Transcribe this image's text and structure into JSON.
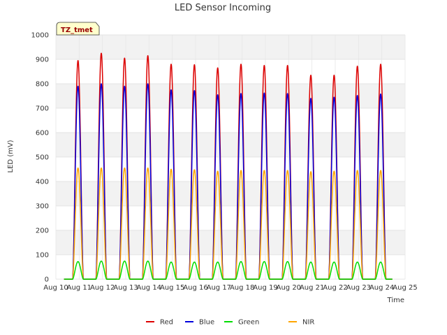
{
  "chart_data": {
    "type": "line",
    "title": "LED Sensor Incoming",
    "xlabel": "Time",
    "ylabel": "LED (mV)",
    "ylim": [
      0,
      1000
    ],
    "yticks": [
      0,
      100,
      200,
      300,
      400,
      500,
      600,
      700,
      800,
      900,
      1000
    ],
    "xlim_days": [
      10,
      25
    ],
    "xtick_labels": [
      "Aug 10",
      "Aug 11",
      "Aug 12",
      "Aug 13",
      "Aug 14",
      "Aug 15",
      "Aug 16",
      "Aug 17",
      "Aug 18",
      "Aug 19",
      "Aug 20",
      "Aug 21",
      "Aug 22",
      "Aug 23",
      "Aug 24",
      "Aug 25"
    ],
    "grid": true,
    "legend_position": "bottom-center",
    "badge": "TZ_tmet",
    "series": [
      {
        "name": "Red",
        "color": "#dd0000",
        "daily_peaks": [
          895,
          925,
          905,
          915,
          880,
          878,
          865,
          880,
          875,
          875,
          835,
          835,
          872,
          880
        ]
      },
      {
        "name": "Blue",
        "color": "#0000dd",
        "daily_peaks": [
          790,
          800,
          790,
          800,
          775,
          772,
          755,
          760,
          762,
          760,
          740,
          745,
          752,
          758
        ]
      },
      {
        "name": "Green",
        "color": "#00dd00",
        "daily_peaks": [
          72,
          74,
          74,
          74,
          70,
          70,
          70,
          72,
          72,
          72,
          70,
          70,
          70,
          70
        ]
      },
      {
        "name": "NIR",
        "color": "#ffa500",
        "daily_peaks": [
          455,
          455,
          455,
          455,
          450,
          448,
          442,
          445,
          445,
          445,
          440,
          442,
          445,
          445
        ]
      }
    ],
    "peak_days": [
      11,
      12,
      13,
      14,
      15,
      16,
      17,
      18,
      19,
      20,
      21,
      22,
      23,
      24
    ],
    "data_start_day": 10.35,
    "data_end_day": 24.45
  }
}
